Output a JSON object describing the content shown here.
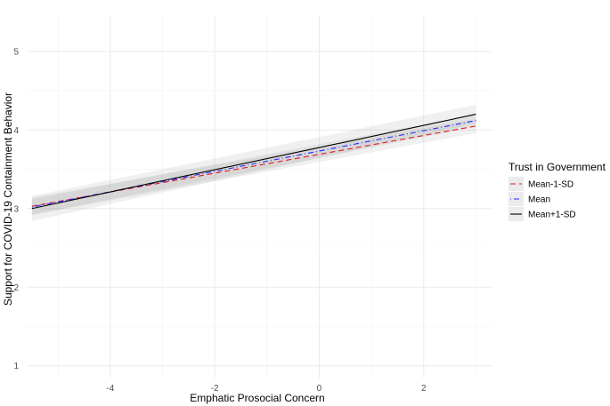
{
  "chart_data": {
    "type": "line",
    "title": "",
    "xlabel": "Emphatic Prosocial Concern",
    "ylabel": "Support for COVID-19 Containment Behavior",
    "xlim": [
      -5.6,
      3.3
    ],
    "ylim": [
      0.85,
      5.45
    ],
    "x_ticks": [
      -4,
      -2,
      0,
      2
    ],
    "y_ticks": [
      1,
      2,
      3,
      4,
      5
    ],
    "grid": true,
    "legend": {
      "title": "Trust in Government",
      "position": "right"
    },
    "series": [
      {
        "name": "Mean-1-SD",
        "color": "#e41a1c",
        "linestyle": "dashed",
        "x": [
          -5.5,
          3.0
        ],
        "y": [
          3.03,
          4.05
        ],
        "ci_lower": [
          2.92,
          3.96
        ],
        "ci_upper": [
          3.14,
          4.14
        ]
      },
      {
        "name": "Mean",
        "color": "#2a2aff",
        "linestyle": "dotdash",
        "x": [
          -5.5,
          3.0
        ],
        "y": [
          3.02,
          4.12
        ],
        "ci_lower": [
          2.92,
          4.04
        ],
        "ci_upper": [
          3.12,
          4.2
        ]
      },
      {
        "name": "Mean+1-SD",
        "color": "#000000",
        "linestyle": "solid",
        "x": [
          -5.5,
          3.0
        ],
        "y": [
          3.0,
          4.2
        ],
        "ci_lower": [
          2.84,
          4.08
        ],
        "ci_upper": [
          3.16,
          4.32
        ]
      }
    ]
  }
}
